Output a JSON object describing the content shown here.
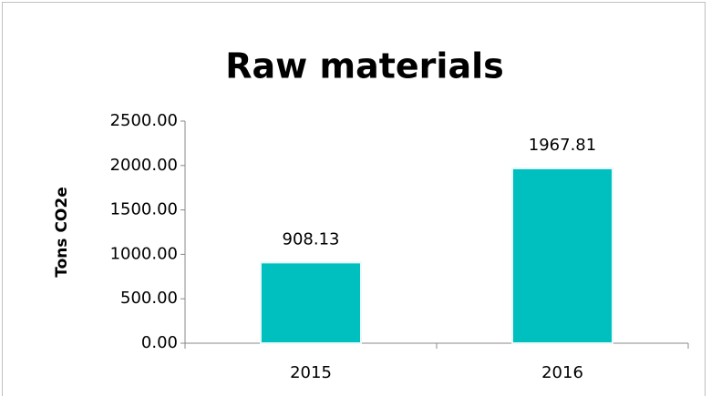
{
  "chart_data": {
    "type": "bar",
    "title": "Raw materials",
    "y_label": "Tons CO2e",
    "categories": [
      "2015",
      "2016"
    ],
    "values": [
      908.13,
      1967.81
    ],
    "color": "#00bfbf",
    "ylim": [
      0,
      2500
    ],
    "yticks": [
      {
        "value": 0,
        "label": "0.00"
      },
      {
        "value": 500,
        "label": "500.00"
      },
      {
        "value": 1000,
        "label": "1000.00"
      },
      {
        "value": 1500,
        "label": "1500.00"
      },
      {
        "value": 2000,
        "label": "2000.00"
      },
      {
        "value": 2500,
        "label": "2500.00"
      }
    ],
    "grid": false
  }
}
